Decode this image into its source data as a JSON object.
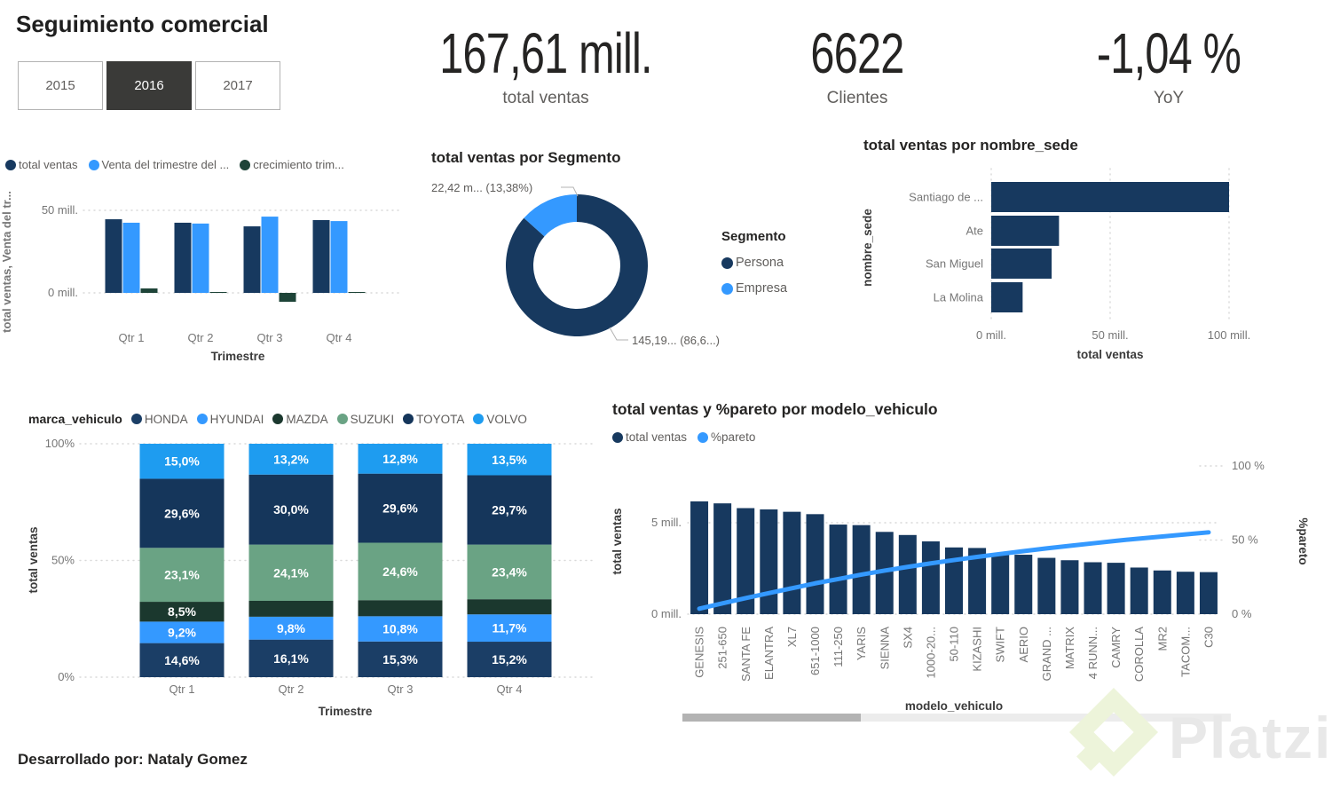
{
  "title": "Seguimiento comercial",
  "slicer": {
    "options": [
      {
        "label": "2015",
        "selected": false
      },
      {
        "label": "2016",
        "selected": true
      },
      {
        "label": "2017",
        "selected": false
      }
    ]
  },
  "kpis": [
    {
      "value": "167,61 mill.",
      "label": "total ventas"
    },
    {
      "value": "6622",
      "label": "Clientes"
    },
    {
      "value": "-1,04 %",
      "label": "YoY"
    }
  ],
  "chart_data": [
    {
      "id": "ventas_trimestre",
      "type": "bar",
      "title": "",
      "categories": [
        "Qtr 1",
        "Qtr 2",
        "Qtr 3",
        "Qtr 4"
      ],
      "series": [
        {
          "name": "total ventas",
          "color": "#17395F",
          "values": [
            44.6,
            42.5,
            40.3,
            44.1
          ]
        },
        {
          "name": "Venta del trimestre del ...",
          "color": "#3499FF",
          "values": [
            42.5,
            42.0,
            46.2,
            43.5
          ]
        },
        {
          "name": "crecimiento trim...",
          "color": "#1E4438",
          "values": [
            2.7,
            0.4,
            -5.4,
            0.5
          ]
        }
      ],
      "xlabel": "Trimestre",
      "ylabel": "total ventas, Venta del tr...",
      "yticks": [
        {
          "v": 0,
          "label": "0 mill."
        },
        {
          "v": 50,
          "label": "50 mill."
        }
      ],
      "ylim": [
        -10,
        55
      ],
      "grid": "dotted",
      "legend_position": "top"
    },
    {
      "id": "segmento",
      "type": "pie",
      "title": "total ventas por Segmento",
      "legend_title": "Segmento",
      "slices": [
        {
          "name": "Persona",
          "color": "#17395F",
          "pct": 86.62,
          "label": "145,19... (86,6...)"
        },
        {
          "name": "Empresa",
          "color": "#3499FF",
          "pct": 13.38,
          "label": "22,42 m... (13,38%)"
        }
      ],
      "legend_position": "right"
    },
    {
      "id": "sede",
      "type": "bar",
      "title": "total ventas por nombre_sede",
      "orientation": "horizontal",
      "categories": [
        "Santiago de ...",
        "Ate",
        "San Miguel",
        "La Molina"
      ],
      "values": [
        100.0,
        28.5,
        25.4,
        13.2
      ],
      "bar_color": "#17395F",
      "xlabel": "total ventas",
      "ylabel": "nombre_sede",
      "xticks": [
        {
          "v": 0,
          "label": "0 mill."
        },
        {
          "v": 50,
          "label": "50 mill."
        },
        {
          "v": 100,
          "label": "100 mill."
        }
      ],
      "xlim": [
        0,
        115
      ],
      "grid": "dotted"
    },
    {
      "id": "marca",
      "type": "bar",
      "subtype": "stacked-100",
      "title": "",
      "legend_title": "marca_vehiculo",
      "categories": [
        "Qtr 1",
        "Qtr 2",
        "Qtr 3",
        "Qtr 4"
      ],
      "series": [
        {
          "name": "HONDA",
          "color": "#1B3E66",
          "values": [
            14.6,
            16.1,
            15.3,
            15.2
          ],
          "labels": [
            "14,6%",
            "16,1%",
            "15,3%",
            "15,2%"
          ]
        },
        {
          "name": "HYUNDAI",
          "color": "#3499FF",
          "values": [
            9.2,
            9.8,
            10.8,
            11.7
          ],
          "labels": [
            "9,2%",
            "9,8%",
            "10,8%",
            "11,7%"
          ]
        },
        {
          "name": "MAZDA",
          "color": "#1B382E",
          "values": [
            8.5,
            6.8,
            6.9,
            6.5
          ],
          "labels": [
            "8,5%",
            "",
            "",
            ""
          ]
        },
        {
          "name": "SUZUKI",
          "color": "#6AA384",
          "values": [
            23.1,
            24.1,
            24.6,
            23.4
          ],
          "labels": [
            "23,1%",
            "24,1%",
            "24,6%",
            "23,4%"
          ]
        },
        {
          "name": "TOYOTA",
          "color": "#15365B",
          "values": [
            29.6,
            30.0,
            29.6,
            29.7
          ],
          "labels": [
            "29,6%",
            "30,0%",
            "29,6%",
            "29,7%"
          ]
        },
        {
          "name": "VOLVO",
          "color": "#1E9CF0",
          "values": [
            15.0,
            13.2,
            12.8,
            13.5
          ],
          "labels": [
            "15,0%",
            "13,2%",
            "12,8%",
            "13,5%"
          ]
        }
      ],
      "xlabel": "Trimestre",
      "ylabel": "total ventas",
      "yticks": [
        {
          "v": 0,
          "label": "0%"
        },
        {
          "v": 50,
          "label": "50%"
        },
        {
          "v": 100,
          "label": "100%"
        }
      ],
      "grid": "dotted",
      "legend_position": "top"
    },
    {
      "id": "pareto",
      "type": "bar",
      "subtype": "combo-line",
      "title": "total ventas y %pareto por modelo_vehiculo",
      "legend": [
        {
          "label": "total ventas",
          "color": "#17395F"
        },
        {
          "label": "%pareto",
          "color": "#3499FF"
        }
      ],
      "categories": [
        "GENESIS",
        "251-650",
        "SANTA FE",
        "ELANTRA",
        "XL7",
        "651-1000",
        "111-250",
        "YARIS",
        "SIENNA",
        "SX4",
        "1000-20...",
        "50-110",
        "KIZASHI",
        "SWIFT",
        "AERIO",
        "GRAND ...",
        "MATRIX",
        "4 RUNN...",
        "CAMRY",
        "COROLLA",
        "MR2",
        "TACOM...",
        "C30"
      ],
      "bars_mill": [
        6.17,
        6.06,
        5.8,
        5.73,
        5.6,
        5.47,
        4.9,
        4.87,
        4.5,
        4.33,
        3.98,
        3.65,
        3.62,
        3.25,
        3.25,
        3.08,
        2.95,
        2.84,
        2.81,
        2.55,
        2.39,
        2.32,
        2.3
      ],
      "line_pct": [
        3.7,
        7.3,
        10.8,
        14.2,
        17.5,
        20.8,
        23.7,
        26.7,
        29.4,
        31.9,
        34.3,
        36.5,
        38.6,
        40.6,
        42.5,
        44.4,
        46.1,
        47.8,
        49.5,
        51.0,
        52.4,
        53.8,
        55.2
      ],
      "xlabel": "modelo_vehiculo",
      "ylabel_left": "total ventas",
      "ylabel_right": "%pareto",
      "yticks_left": [
        {
          "v": 0,
          "label": "0 mill."
        },
        {
          "v": 5,
          "label": "5 mill."
        }
      ],
      "yticks_right": [
        {
          "v": 0,
          "label": "0 %"
        },
        {
          "v": 50,
          "label": "50 %"
        },
        {
          "v": 100,
          "label": "100 %"
        }
      ],
      "grid": "dotted",
      "has_scrollbar": true
    }
  ],
  "footer": {
    "credit": "Desarrollado por: Nataly Gomez",
    "watermark": "Platzi"
  }
}
